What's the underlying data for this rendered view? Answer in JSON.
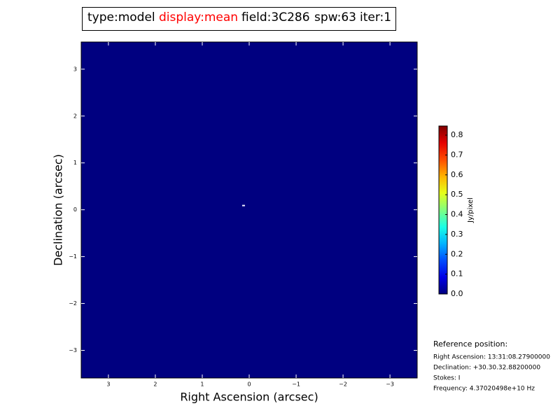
{
  "title_box": {
    "type": "type:model",
    "display": "display:mean",
    "field": "field:3C286",
    "spw": "spw:63",
    "iter": "iter:1"
  },
  "chart_data": {
    "type": "image",
    "xlabel": "Right Ascension (arcsec)",
    "ylabel": "Declination (arcsec)",
    "xlim": [
      3.58,
      -3.58
    ],
    "ylim": [
      -3.59,
      3.58
    ],
    "xticks": [
      3,
      2,
      1,
      0,
      {
        "value": -1,
        "label": "−1"
      },
      {
        "value": -2,
        "label": "−2"
      },
      {
        "value": -3,
        "label": "−3"
      }
    ],
    "yticks": [
      {
        "value": -3,
        "label": "−3"
      },
      {
        "value": -2,
        "label": "−2"
      },
      {
        "value": -1,
        "label": "−1"
      },
      0,
      1,
      2,
      3
    ],
    "background_color": "#000080",
    "source": {
      "x": 0.12,
      "y": 0.09,
      "value": 0.846
    },
    "colorbar": {
      "label": "Jy/pixel",
      "colormap": "jet",
      "clim": [
        0,
        0.846
      ],
      "ticks": [
        {
          "value": 0,
          "label": "0.0"
        },
        0.1,
        0.2,
        0.3,
        0.4,
        0.5,
        0.6,
        0.7,
        0.8
      ]
    }
  },
  "reference": {
    "heading": "Reference position:",
    "lines": [
      "Right Ascension: 13:31:08.27900000",
      "Declination: +30.30.32.88200000",
      "Stokes: I",
      "Frequency: 4.37020498e+10 Hz"
    ]
  }
}
